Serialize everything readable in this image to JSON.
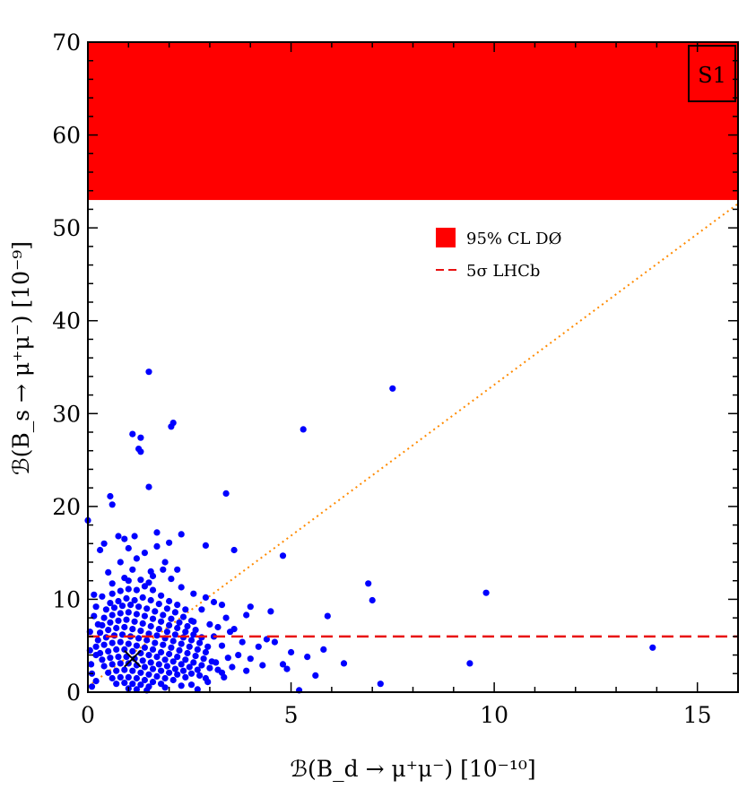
{
  "chart_data": {
    "type": "scatter",
    "panel_label": "S1",
    "xlabel": "ℬ(B_d → μ⁺μ⁻)  [10⁻¹⁰]",
    "ylabel": "ℬ(B_s → μ⁺μ⁻)  [10⁻⁹]",
    "xlim": [
      0,
      16
    ],
    "ylim": [
      0,
      70
    ],
    "x_ticks": [
      0,
      5,
      10,
      15
    ],
    "y_ticks": [
      0,
      10,
      20,
      30,
      40,
      50,
      60,
      70
    ],
    "excluded_band": {
      "label": "95% CL DØ",
      "y_from": 53,
      "y_to": 70,
      "color": "#ff0000"
    },
    "hline": {
      "label": "5σ LHCb",
      "y": 6,
      "color": "#e81010",
      "style": "dashed"
    },
    "ratio_line": {
      "points": [
        [
          0,
          0.6
        ],
        [
          16,
          52.6
        ]
      ],
      "color": "#ff8a00",
      "style": "dotted"
    },
    "sm_point": {
      "x": 1.1,
      "y": 3.6,
      "marker": "x",
      "color": "#000000"
    },
    "legend": [
      {
        "label": "95% CL DØ",
        "style": "filled-square",
        "color": "#ff0000"
      },
      {
        "label": "5σ LHCb",
        "style": "dashed-line",
        "color": "#e81010"
      }
    ],
    "point_color": "#0000ff",
    "points": [
      [
        1.5,
        34.5
      ],
      [
        7.5,
        32.7
      ],
      [
        1.1,
        27.8
      ],
      [
        1.3,
        27.4
      ],
      [
        1.25,
        26.2
      ],
      [
        1.3,
        25.9
      ],
      [
        2.1,
        29.0
      ],
      [
        2.05,
        28.6
      ],
      [
        5.3,
        28.3
      ],
      [
        1.5,
        22.1
      ],
      [
        3.4,
        21.4
      ],
      [
        0.55,
        21.1
      ],
      [
        0.6,
        20.2
      ],
      [
        0.0,
        18.5
      ],
      [
        0.4,
        16.0
      ],
      [
        0.75,
        16.8
      ],
      [
        0.9,
        16.5
      ],
      [
        1.15,
        16.8
      ],
      [
        1.7,
        17.2
      ],
      [
        2.3,
        17.0
      ],
      [
        2.9,
        15.8
      ],
      [
        3.6,
        15.3
      ],
      [
        4.8,
        14.7
      ],
      [
        0.3,
        15.3
      ],
      [
        1.0,
        15.5
      ],
      [
        1.4,
        15.0
      ],
      [
        1.7,
        15.7
      ],
      [
        2.0,
        16.1
      ],
      [
        0.8,
        14.0
      ],
      [
        1.2,
        14.4
      ],
      [
        1.9,
        14.0
      ],
      [
        1.1,
        13.2
      ],
      [
        1.85,
        13.2
      ],
      [
        2.2,
        13.2
      ],
      [
        0.5,
        12.9
      ],
      [
        1.55,
        13.0
      ],
      [
        6.9,
        11.7
      ],
      [
        9.8,
        10.7
      ],
      [
        7.0,
        9.9
      ],
      [
        3.1,
        9.7
      ],
      [
        3.3,
        9.4
      ],
      [
        4.0,
        9.2
      ],
      [
        5.9,
        8.2
      ],
      [
        4.5,
        8.7
      ],
      [
        3.9,
        8.3
      ],
      [
        2.8,
        8.9
      ],
      [
        3.0,
        7.3
      ],
      [
        2.6,
        7.6
      ],
      [
        3.2,
        7.0
      ],
      [
        3.6,
        6.8
      ],
      [
        4.4,
        5.7
      ],
      [
        4.6,
        5.4
      ],
      [
        4.2,
        4.9
      ],
      [
        5.8,
        4.6
      ],
      [
        13.9,
        4.8
      ],
      [
        5.0,
        4.3
      ],
      [
        3.7,
        4.0
      ],
      [
        4.0,
        3.6
      ],
      [
        5.4,
        3.8
      ],
      [
        6.3,
        3.1
      ],
      [
        9.4,
        3.1
      ],
      [
        4.8,
        3.0
      ],
      [
        4.3,
        2.9
      ],
      [
        4.9,
        2.5
      ],
      [
        3.9,
        2.3
      ],
      [
        3.3,
        2.1
      ],
      [
        5.6,
        1.8
      ],
      [
        2.9,
        1.5
      ],
      [
        7.2,
        0.9
      ],
      [
        0.1,
        0.6
      ],
      [
        0.2,
        1.2
      ],
      [
        2.3,
        0.7
      ],
      [
        2.7,
        0.3
      ],
      [
        1.9,
        0.5
      ],
      [
        5.2,
        0.2
      ],
      [
        0.15,
        10.5
      ],
      [
        0.25,
        7.3
      ],
      [
        0.05,
        4.5
      ],
      [
        0.08,
        3.0
      ],
      [
        0.1,
        2.0
      ],
      [
        0.05,
        6.5
      ],
      [
        0.2,
        4.0
      ],
      [
        0.35,
        10.3
      ],
      [
        0.6,
        10.6
      ],
      [
        0.8,
        10.9
      ],
      [
        1.0,
        11.1
      ],
      [
        1.2,
        11.0
      ],
      [
        1.4,
        11.4
      ],
      [
        1.6,
        11.0
      ],
      [
        1.8,
        10.4
      ],
      [
        2.0,
        9.8
      ],
      [
        2.2,
        9.4
      ],
      [
        2.4,
        8.9
      ],
      [
        0.55,
        9.6
      ],
      [
        0.75,
        9.8
      ],
      [
        0.95,
        10.1
      ],
      [
        1.15,
        9.9
      ],
      [
        1.35,
        10.2
      ],
      [
        1.55,
        9.9
      ],
      [
        1.75,
        9.5
      ],
      [
        1.95,
        9.0
      ],
      [
        2.15,
        8.6
      ],
      [
        2.35,
        8.1
      ],
      [
        2.55,
        7.7
      ],
      [
        0.45,
        8.9
      ],
      [
        0.65,
        9.1
      ],
      [
        0.85,
        9.3
      ],
      [
        1.05,
        9.4
      ],
      [
        1.25,
        9.2
      ],
      [
        1.45,
        9.0
      ],
      [
        1.65,
        8.7
      ],
      [
        1.85,
        8.3
      ],
      [
        2.05,
        7.9
      ],
      [
        2.25,
        7.5
      ],
      [
        2.45,
        7.1
      ],
      [
        2.65,
        6.7
      ],
      [
        0.4,
        8.0
      ],
      [
        0.6,
        8.3
      ],
      [
        0.8,
        8.5
      ],
      [
        1.0,
        8.6
      ],
      [
        1.2,
        8.4
      ],
      [
        1.4,
        8.2
      ],
      [
        1.6,
        7.9
      ],
      [
        1.8,
        7.6
      ],
      [
        2.0,
        7.2
      ],
      [
        2.2,
        6.9
      ],
      [
        2.4,
        6.5
      ],
      [
        2.6,
        6.2
      ],
      [
        2.8,
        5.9
      ],
      [
        0.35,
        7.2
      ],
      [
        0.55,
        7.5
      ],
      [
        0.75,
        7.7
      ],
      [
        0.95,
        7.8
      ],
      [
        1.15,
        7.6
      ],
      [
        1.35,
        7.4
      ],
      [
        1.55,
        7.1
      ],
      [
        1.75,
        6.8
      ],
      [
        1.95,
        6.5
      ],
      [
        2.15,
        6.2
      ],
      [
        2.35,
        5.9
      ],
      [
        2.55,
        5.6
      ],
      [
        2.75,
        5.3
      ],
      [
        0.3,
        6.4
      ],
      [
        0.5,
        6.7
      ],
      [
        0.7,
        6.9
      ],
      [
        0.9,
        7.0
      ],
      [
        1.1,
        6.8
      ],
      [
        1.3,
        6.6
      ],
      [
        1.5,
        6.3
      ],
      [
        1.7,
        6.1
      ],
      [
        1.9,
        5.8
      ],
      [
        2.1,
        5.5
      ],
      [
        2.3,
        5.2
      ],
      [
        2.5,
        4.9
      ],
      [
        2.7,
        4.6
      ],
      [
        2.9,
        4.3
      ],
      [
        0.25,
        5.6
      ],
      [
        0.45,
        5.9
      ],
      [
        0.65,
        6.1
      ],
      [
        0.85,
        6.2
      ],
      [
        1.05,
        6.0
      ],
      [
        1.25,
        5.8
      ],
      [
        1.45,
        5.6
      ],
      [
        1.65,
        5.3
      ],
      [
        1.85,
        5.1
      ],
      [
        2.05,
        4.8
      ],
      [
        2.25,
        4.5
      ],
      [
        2.45,
        4.2
      ],
      [
        2.65,
        3.9
      ],
      [
        2.85,
        3.6
      ],
      [
        3.05,
        3.3
      ],
      [
        0.2,
        4.9
      ],
      [
        0.4,
        5.1
      ],
      [
        0.6,
        5.3
      ],
      [
        0.8,
        5.4
      ],
      [
        1.0,
        5.2
      ],
      [
        1.2,
        5.0
      ],
      [
        1.4,
        4.8
      ],
      [
        1.6,
        4.6
      ],
      [
        1.8,
        4.3
      ],
      [
        2.0,
        4.1
      ],
      [
        2.2,
        3.8
      ],
      [
        2.4,
        3.5
      ],
      [
        2.6,
        3.2
      ],
      [
        2.8,
        2.9
      ],
      [
        3.0,
        2.6
      ],
      [
        3.2,
        2.4
      ],
      [
        0.3,
        4.2
      ],
      [
        0.5,
        4.4
      ],
      [
        0.7,
        4.6
      ],
      [
        0.9,
        4.6
      ],
      [
        1.1,
        4.4
      ],
      [
        1.3,
        4.2
      ],
      [
        1.5,
        4.0
      ],
      [
        1.7,
        3.8
      ],
      [
        1.9,
        3.5
      ],
      [
        2.1,
        3.3
      ],
      [
        2.3,
        3.0
      ],
      [
        2.5,
        2.7
      ],
      [
        2.7,
        2.4
      ],
      [
        0.35,
        3.5
      ],
      [
        0.55,
        3.7
      ],
      [
        0.75,
        3.8
      ],
      [
        0.95,
        3.8
      ],
      [
        1.15,
        3.6
      ],
      [
        1.35,
        3.4
      ],
      [
        1.55,
        3.2
      ],
      [
        1.75,
        3.0
      ],
      [
        1.95,
        2.8
      ],
      [
        2.15,
        2.5
      ],
      [
        2.35,
        2.3
      ],
      [
        2.55,
        2.0
      ],
      [
        2.75,
        1.8
      ],
      [
        0.4,
        2.8
      ],
      [
        0.6,
        3.0
      ],
      [
        0.8,
        3.1
      ],
      [
        1.0,
        3.1
      ],
      [
        1.2,
        2.9
      ],
      [
        1.4,
        2.7
      ],
      [
        1.6,
        2.5
      ],
      [
        1.8,
        2.3
      ],
      [
        2.0,
        2.1
      ],
      [
        2.2,
        1.9
      ],
      [
        2.4,
        1.6
      ],
      [
        0.5,
        2.1
      ],
      [
        0.7,
        2.3
      ],
      [
        0.9,
        2.4
      ],
      [
        1.1,
        2.3
      ],
      [
        1.3,
        2.1
      ],
      [
        1.5,
        1.9
      ],
      [
        1.7,
        1.7
      ],
      [
        1.9,
        1.5
      ],
      [
        2.1,
        1.3
      ],
      [
        0.6,
        1.5
      ],
      [
        0.8,
        1.6
      ],
      [
        1.0,
        1.6
      ],
      [
        1.2,
        1.5
      ],
      [
        1.4,
        1.3
      ],
      [
        1.6,
        1.1
      ],
      [
        1.8,
        0.9
      ],
      [
        0.7,
        0.9
      ],
      [
        0.9,
        1.0
      ],
      [
        1.1,
        0.9
      ],
      [
        1.3,
        0.8
      ],
      [
        1.5,
        0.6
      ],
      [
        1.0,
        0.4
      ],
      [
        1.2,
        0.3
      ],
      [
        1.45,
        0.2
      ],
      [
        0.9,
        12.3
      ],
      [
        1.3,
        12.1
      ],
      [
        1.6,
        12.5
      ],
      [
        2.05,
        12.2
      ],
      [
        0.6,
        11.7
      ],
      [
        1.0,
        12.0
      ],
      [
        1.5,
        11.8
      ],
      [
        2.3,
        11.3
      ],
      [
        2.6,
        10.6
      ],
      [
        2.9,
        10.2
      ],
      [
        0.2,
        9.2
      ],
      [
        3.4,
        8.0
      ],
      [
        3.5,
        6.5
      ],
      [
        3.8,
        5.4
      ],
      [
        3.3,
        5.0
      ],
      [
        3.1,
        6.0
      ],
      [
        2.95,
        4.9
      ],
      [
        3.45,
        3.7
      ],
      [
        3.15,
        3.2
      ],
      [
        3.55,
        2.7
      ],
      [
        3.35,
        1.6
      ],
      [
        2.95,
        1.1
      ],
      [
        2.55,
        0.8
      ],
      [
        0.15,
        8.2
      ]
    ]
  }
}
